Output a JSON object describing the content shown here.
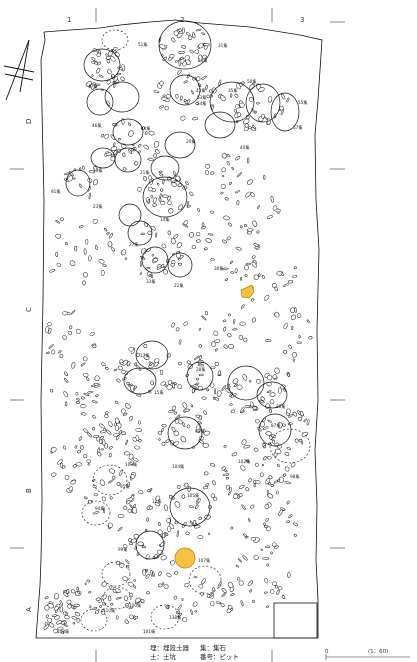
{
  "grid": {
    "cols": [
      "1",
      "2",
      "3"
    ],
    "rows": [
      "D",
      "C",
      "B",
      "A"
    ]
  },
  "feature_labels": [
    "51集",
    "31集",
    "24集",
    "47集",
    "43集",
    "50集",
    "35集",
    "53集",
    "54集",
    "55集",
    "46集",
    "44集",
    "57集",
    "20集",
    "40集",
    "13集",
    "21集",
    "91集",
    "23集",
    "14集",
    "27集",
    "30集",
    "33集",
    "22集",
    "17集",
    "28集",
    "15集",
    "86集",
    "87集",
    "93集",
    "103集",
    "104集",
    "102集",
    "98集",
    "95集",
    "94集",
    "12集",
    "105集",
    "99集",
    "107集",
    "110集",
    "100集",
    "108集",
    "138集",
    "101集"
  ],
  "legend": {
    "row1_left": "埋：埋設土器",
    "row1_right": "集：集石",
    "row2_left": "土：土坑",
    "row2_right": "番号：ピット"
  },
  "scale": {
    "zero": "0",
    "ratio": "(1：60)"
  },
  "colors": {
    "highlight_fill": "#f5c242",
    "highlight_stroke": "#b08000",
    "line": "#111111"
  }
}
